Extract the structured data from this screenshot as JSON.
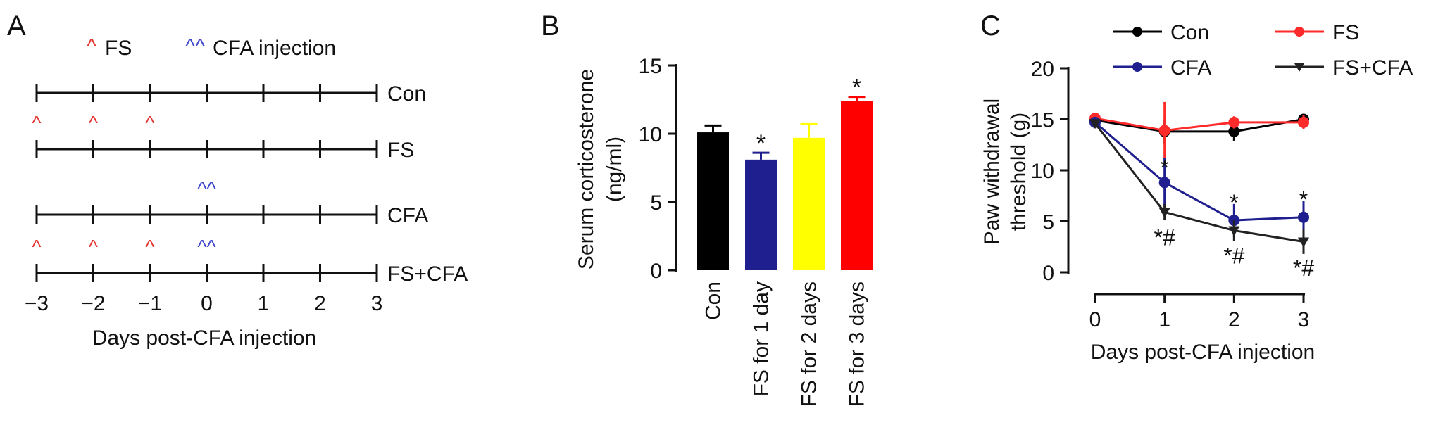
{
  "panel_a": {
    "label": "A",
    "legend": {
      "fs_marker": "^",
      "fs_text": "FS",
      "cfa_marker": "^^",
      "cfa_text": "CFA injection"
    },
    "x_ticks": [
      "−3",
      "−2",
      "−1",
      "0",
      "1",
      "2",
      "3"
    ],
    "xlabel": "Days post-CFA injection",
    "rows": [
      {
        "name": "Con",
        "fs_days": [],
        "cfa_days": []
      },
      {
        "name": "FS",
        "fs_days": [
          -3,
          -2,
          -1
        ],
        "cfa_days": []
      },
      {
        "name": "CFA",
        "fs_days": [],
        "cfa_days": [
          0
        ]
      },
      {
        "name": "FS+CFA",
        "fs_days": [
          -3,
          -2,
          -1
        ],
        "cfa_days": [
          0
        ]
      }
    ],
    "colors": {
      "fs": "#e53935",
      "cfa": "#3f48cc",
      "line": "#111111"
    }
  },
  "chart_data": [
    {
      "type": "bar",
      "panel_label": "B",
      "ylabel": "Serum corticosterone (ng/ml)",
      "ylim": [
        0,
        15
      ],
      "y_ticks": [
        "0",
        "5",
        "10",
        "15"
      ],
      "categories": [
        "Con",
        "FS for 1 day",
        "FS for 2 days",
        "FS for 3 days"
      ],
      "values": [
        10.1,
        8.1,
        9.7,
        12.4
      ],
      "errors": [
        0.5,
        0.5,
        1.0,
        0.3
      ],
      "colors": [
        "#000000",
        "#1f1f8f",
        "#ffff00",
        "#ff0000"
      ],
      "significance": [
        "",
        "*",
        "",
        "*"
      ]
    },
    {
      "type": "line",
      "panel_label": "C",
      "ylabel": "Paw withdrawal threshold (g)",
      "xlabel": "Days post-CFA injection",
      "x": [
        0,
        1,
        2,
        3
      ],
      "xlim": [
        0,
        3
      ],
      "ylim": [
        0,
        20
      ],
      "x_ticks": [
        "0",
        "1",
        "2",
        "3"
      ],
      "y_ticks": [
        "0",
        "5",
        "10",
        "15",
        "20"
      ],
      "legend_position": "top",
      "series": [
        {
          "name": "Con",
          "values": [
            14.9,
            13.8,
            13.8,
            15.0
          ],
          "errors": [
            0.4,
            1.2,
            0.9,
            0.4
          ],
          "color": "#000000",
          "marker": "circle"
        },
        {
          "name": "FS",
          "values": [
            15.1,
            13.9,
            14.7,
            14.7
          ],
          "errors": [
            0.3,
            2.8,
            0.6,
            0.7
          ],
          "color": "#ff2a2a",
          "marker": "circle"
        },
        {
          "name": "CFA",
          "values": [
            14.7,
            8.8,
            5.1,
            5.4
          ],
          "errors": [
            0.4,
            2.4,
            1.6,
            1.6
          ],
          "color": "#1f1f8f",
          "marker": "circle"
        },
        {
          "name": "FS+CFA",
          "values": [
            14.6,
            5.9,
            4.1,
            3.0
          ],
          "errors": [
            0.4,
            0.8,
            1.0,
            1.2
          ],
          "color": "#222222",
          "marker": "triangle-down"
        }
      ],
      "annotations": [
        {
          "text": "*",
          "x": 1,
          "y": 10.3
        },
        {
          "text": "*#",
          "x": 1,
          "y": 3.5
        },
        {
          "text": "*",
          "x": 2,
          "y": 6.9
        },
        {
          "text": "*#",
          "x": 2,
          "y": 1.7
        },
        {
          "text": "*",
          "x": 3,
          "y": 7.2
        },
        {
          "text": "*#",
          "x": 3,
          "y": 0.5
        }
      ]
    }
  ]
}
